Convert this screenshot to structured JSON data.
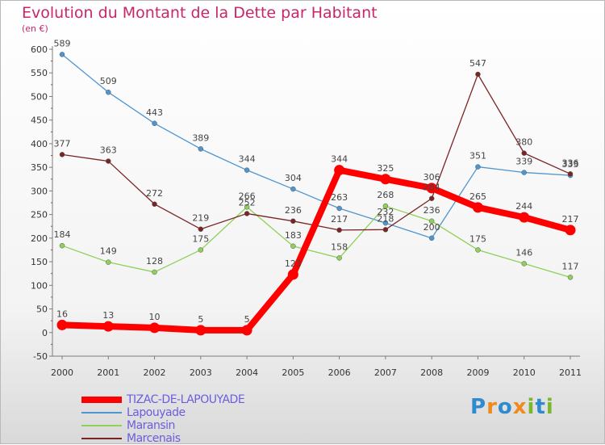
{
  "title": "Evolution du Montant de la Dette par Habitant",
  "unit": "(en €)",
  "logo_text": "Proxiti",
  "chart_data": {
    "type": "line",
    "title": "Evolution du Montant de la Dette par Habitant",
    "ylabel": "(en €)",
    "xlabel": "",
    "x": [
      "2000",
      "2001",
      "2002",
      "2003",
      "2004",
      "2005",
      "2006",
      "2007",
      "2008",
      "2009",
      "2010",
      "2011"
    ],
    "yticks": [
      -50,
      0,
      50,
      100,
      150,
      200,
      250,
      300,
      350,
      400,
      450,
      500,
      550,
      600
    ],
    "ylim": [
      -50,
      600
    ],
    "grid": false,
    "legend_position": "bottom-left",
    "series": [
      {
        "name": "TIZAC-DE-LAPOUYADE",
        "color": "#ff0000",
        "emphasis": true,
        "values": [
          16,
          13,
          10,
          5,
          5,
          123,
          344,
          325,
          306,
          265,
          244,
          217
        ]
      },
      {
        "name": "Lapouyade",
        "color": "#4f95cf",
        "emphasis": false,
        "values": [
          589,
          509,
          443,
          389,
          344,
          304,
          263,
          232,
          200,
          351,
          339,
          333
        ]
      },
      {
        "name": "Maransin",
        "color": "#8ed05a",
        "emphasis": false,
        "values": [
          184,
          149,
          128,
          175,
          266,
          183,
          158,
          268,
          236,
          175,
          146,
          117
        ]
      },
      {
        "name": "Marcenais",
        "color": "#7a2525",
        "emphasis": false,
        "values": [
          377,
          363,
          272,
          219,
          252,
          236,
          217,
          218,
          284,
          547,
          380,
          336
        ]
      }
    ]
  }
}
